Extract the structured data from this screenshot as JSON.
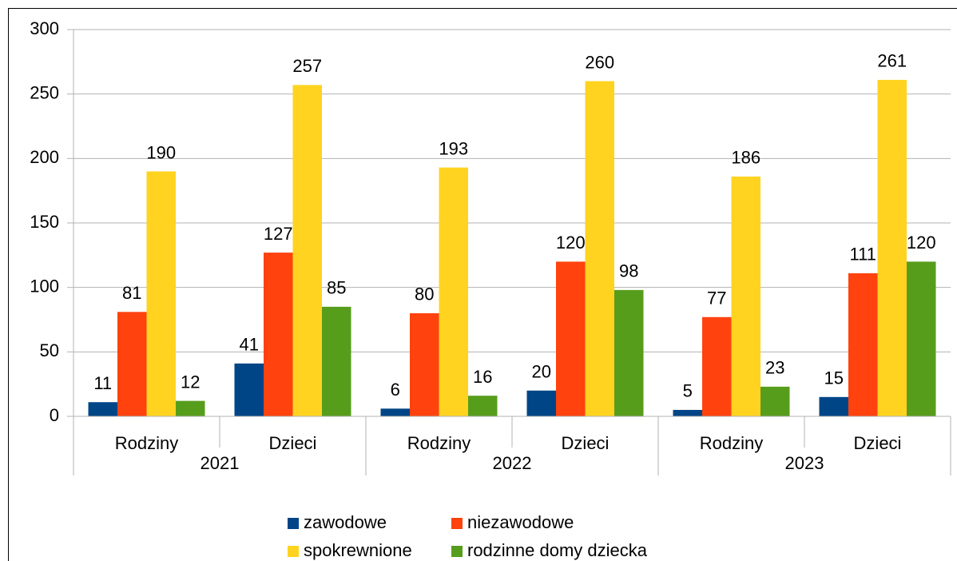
{
  "chart_data": {
    "type": "bar",
    "categories": [
      "Rodziny",
      "Dzieci",
      "Rodziny",
      "Dzieci",
      "Rodziny",
      "Dzieci"
    ],
    "category_groups": [
      "2021",
      "2022",
      "2023"
    ],
    "series": [
      {
        "name": "zawodowe",
        "color": "#004586",
        "values": [
          11,
          41,
          6,
          20,
          5,
          15
        ]
      },
      {
        "name": "niezawodowe",
        "color": "#ff420e",
        "values": [
          81,
          127,
          80,
          120,
          77,
          111
        ]
      },
      {
        "name": "spokrewnione",
        "color": "#ffd320",
        "values": [
          190,
          257,
          193,
          260,
          186,
          261
        ]
      },
      {
        "name": "rodzinne domy dziecka",
        "color": "#579d1c",
        "values": [
          12,
          85,
          16,
          98,
          23,
          120
        ]
      }
    ],
    "ylim": [
      0,
      300
    ],
    "yticks": [
      0,
      50,
      100,
      150,
      200,
      250,
      300
    ],
    "grid": true
  }
}
